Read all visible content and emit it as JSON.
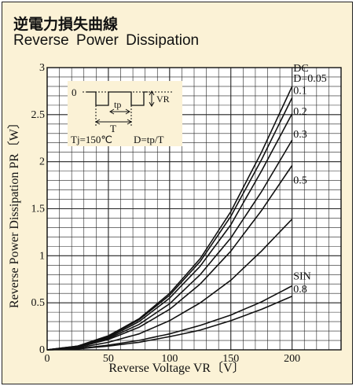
{
  "title_jp": "逆電力損失曲線",
  "title_en": "Reverse Power Dissipation",
  "chart_data": {
    "type": "line",
    "xlabel": "Reverse Voltage VR〔V〕",
    "ylabel": "Reverse Power Dissipation PR〔W〕",
    "xlim": [
      0,
      240
    ],
    "ylim": [
      0,
      3
    ],
    "xticks": [
      "0",
      "50",
      "100",
      "150",
      "200"
    ],
    "yticks": [
      "0",
      "0.5",
      "1",
      "1.5",
      "2",
      "2.5",
      "3"
    ],
    "grid": true,
    "curve_labels": [
      "DC",
      "D=0.05",
      "0.1",
      "0.2",
      "0.3",
      "0.5",
      "SIN",
      "0.8"
    ],
    "series": [
      {
        "name": "DC",
        "x": [
          0,
          25,
          50,
          75,
          100,
          125,
          150,
          175,
          200
        ],
        "y": [
          0,
          0.04,
          0.15,
          0.33,
          0.6,
          0.97,
          1.47,
          2.1,
          2.8
        ]
      },
      {
        "name": "D=0.05",
        "x": [
          0,
          25,
          50,
          75,
          100,
          125,
          150,
          175,
          200
        ],
        "y": [
          0,
          0.04,
          0.14,
          0.32,
          0.58,
          0.94,
          1.42,
          2.02,
          2.68
        ]
      },
      {
        "name": "0.1",
        "x": [
          0,
          25,
          50,
          75,
          100,
          125,
          150,
          175,
          200
        ],
        "y": [
          0,
          0.035,
          0.13,
          0.3,
          0.55,
          0.89,
          1.33,
          1.9,
          2.51
        ]
      },
      {
        "name": "0.2",
        "x": [
          0,
          25,
          50,
          75,
          100,
          125,
          150,
          175,
          200
        ],
        "y": [
          0,
          0.03,
          0.12,
          0.27,
          0.49,
          0.8,
          1.19,
          1.68,
          2.23
        ]
      },
      {
        "name": "0.3",
        "x": [
          0,
          25,
          50,
          75,
          100,
          125,
          150,
          175,
          200
        ],
        "y": [
          0,
          0.027,
          0.11,
          0.24,
          0.43,
          0.7,
          1.05,
          1.48,
          1.96
        ]
      },
      {
        "name": "0.5",
        "x": [
          0,
          25,
          50,
          75,
          100,
          125,
          150,
          175,
          200
        ],
        "y": [
          0,
          0.02,
          0.08,
          0.17,
          0.31,
          0.5,
          0.74,
          1.05,
          1.39
        ]
      },
      {
        "name": "SIN",
        "x": [
          0,
          25,
          50,
          75,
          100,
          125,
          150,
          175,
          200
        ],
        "y": [
          0,
          0.012,
          0.05,
          0.1,
          0.17,
          0.26,
          0.37,
          0.51,
          0.68
        ]
      },
      {
        "name": "0.8",
        "x": [
          0,
          25,
          50,
          75,
          100,
          125,
          150,
          175,
          200
        ],
        "y": [
          0,
          0.01,
          0.04,
          0.08,
          0.14,
          0.21,
          0.31,
          0.43,
          0.57
        ]
      }
    ]
  },
  "inset": {
    "zero": "0",
    "vr": "VR",
    "tp": "tp",
    "t": "T",
    "tj": "Tj=150℃",
    "duty": "D=tp/T"
  }
}
